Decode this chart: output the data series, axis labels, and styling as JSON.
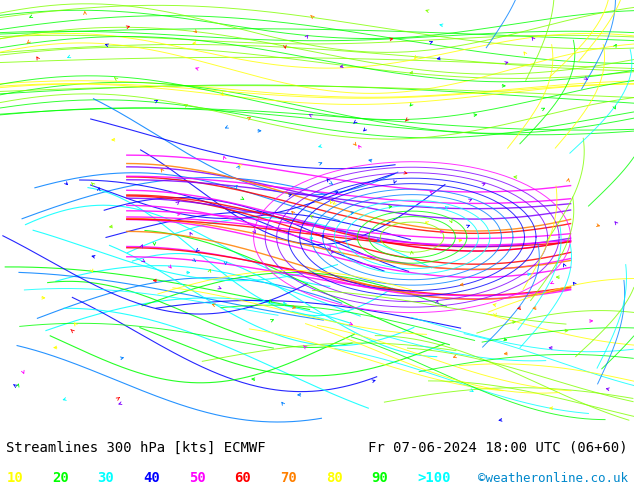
{
  "title_left": "Streamlines 300 hPa [kts] ECMWF",
  "title_right": "Fr 07-06-2024 18:00 UTC (06+60)",
  "watermark": "©weatheronline.co.uk",
  "legend_values": [
    "10",
    "20",
    "30",
    "40",
    "50",
    "60",
    "70",
    "80",
    "90",
    ">100"
  ],
  "legend_colors": [
    "#ffff00",
    "#00ff00",
    "#00ffff",
    "#0000ff",
    "#ff00ff",
    "#ff0000",
    "#ff8000",
    "#ffff00",
    "#00ff00",
    "#00ffff"
  ],
  "background_color": "#ffffff",
  "fig_width": 6.34,
  "fig_height": 4.9,
  "dpi": 100,
  "bottom_bar_color": "#ffffff",
  "title_fontsize": 10,
  "legend_fontsize": 10,
  "watermark_color": "#0088cc",
  "watermark_fontsize": 9
}
